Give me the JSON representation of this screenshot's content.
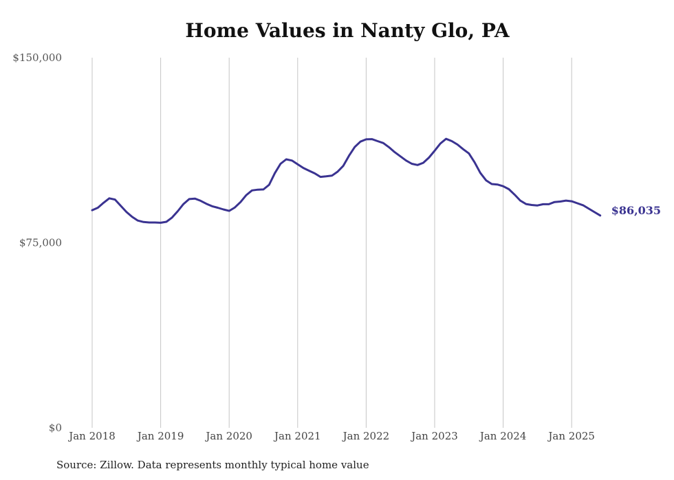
{
  "chart_data": {
    "type": "line",
    "title": "Home Values in Nanty Glo, PA",
    "source": "Source: Zillow. Data represents monthly typical home value",
    "ylim": [
      0,
      150000
    ],
    "yticks": [
      {
        "value": 0,
        "label": "$0"
      },
      {
        "value": 75000,
        "label": "$75,000"
      },
      {
        "value": 150000,
        "label": "$150,000"
      }
    ],
    "xticks": [
      "Jan 2018",
      "Jan 2019",
      "Jan 2020",
      "Jan 2021",
      "Jan 2022",
      "Jan 2023",
      "Jan 2024",
      "Jan 2025"
    ],
    "grid": "vertical",
    "line_color": "#3a3391",
    "end_label": "$86,035",
    "series": [
      {
        "x_start": "Jan 2018",
        "frequency": "monthly",
        "values": [
          88200,
          89200,
          91200,
          93000,
          92500,
          90000,
          87500,
          85500,
          84000,
          83400,
          83200,
          83200,
          83100,
          83500,
          85200,
          87800,
          90700,
          92700,
          92900,
          92000,
          90800,
          89800,
          89200,
          88500,
          87900,
          89300,
          91500,
          94300,
          96200,
          96500,
          96600,
          98500,
          103200,
          107000,
          108800,
          108300,
          106800,
          105300,
          104200,
          103100,
          101700,
          101900,
          102200,
          103800,
          106200,
          110300,
          113800,
          116000,
          116900,
          117000,
          116200,
          115400,
          113700,
          111700,
          110000,
          108300,
          107000,
          106500,
          107400,
          109500,
          112300,
          115200,
          117100,
          116200,
          114800,
          112900,
          111200,
          107600,
          103300,
          100300,
          98800,
          98600,
          97900,
          96700,
          94500,
          92100,
          90700,
          90300,
          90100,
          90600,
          90600,
          91500,
          91700,
          92100,
          91800,
          91000,
          90200,
          88800,
          87400,
          86035
        ]
      }
    ]
  }
}
